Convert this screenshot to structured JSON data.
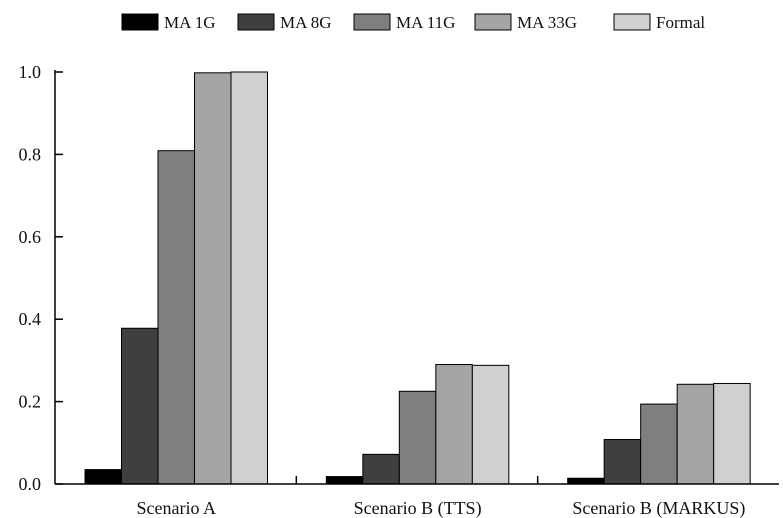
{
  "chart_data": {
    "type": "bar",
    "title": "",
    "xlabel": "",
    "ylabel": "",
    "categories": [
      "Scenario A",
      "Scenario B (TTS)",
      "Scenario B (MARKUS)"
    ],
    "series": [
      {
        "name": "MA 1G",
        "color": "#000000",
        "values": [
          0.035,
          0.018,
          0.014
        ]
      },
      {
        "name": "MA 8G",
        "color": "#3f3f3f",
        "values": [
          0.378,
          0.072,
          0.108
        ]
      },
      {
        "name": "MA 11G",
        "color": "#7f7f7f",
        "values": [
          0.809,
          0.225,
          0.194
        ]
      },
      {
        "name": "MA 33G",
        "color": "#a5a5a5",
        "values": [
          0.998,
          0.29,
          0.242
        ]
      },
      {
        "name": "Formal",
        "color": "#d0d0d0",
        "values": [
          1.0,
          0.288,
          0.244
        ]
      }
    ],
    "ylim": [
      0,
      1.0
    ],
    "yticks": [
      "0.0",
      "0.2",
      "0.4",
      "0.6",
      "0.8",
      "1.0"
    ],
    "grid": false,
    "legend_position": "top"
  }
}
